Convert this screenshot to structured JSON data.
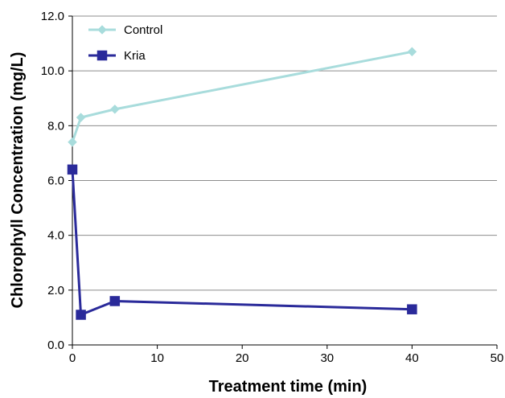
{
  "chart_data": {
    "type": "line",
    "title": "",
    "xlabel": "Treatment time (min)",
    "ylabel": "Chlorophyll Concentration (mg/L)",
    "xlim": [
      0,
      50
    ],
    "ylim": [
      0,
      12
    ],
    "x_ticks": [
      "0",
      "10",
      "20",
      "30",
      "40",
      "50"
    ],
    "y_ticks": [
      "0.0",
      "2.0",
      "4.0",
      "6.0",
      "8.0",
      "10.0",
      "12.0"
    ],
    "grid": "horizontal",
    "legend_position": "top-left",
    "series": [
      {
        "name": "Control",
        "color": "#a8dcdc",
        "marker": "diamond",
        "x": [
          0,
          1,
          5,
          40
        ],
        "y": [
          7.4,
          8.3,
          8.6,
          10.7
        ]
      },
      {
        "name": "Kria",
        "color": "#2a2a9a",
        "marker": "square",
        "x": [
          0,
          1,
          5,
          40
        ],
        "y": [
          6.4,
          1.1,
          1.6,
          1.3
        ]
      }
    ]
  }
}
